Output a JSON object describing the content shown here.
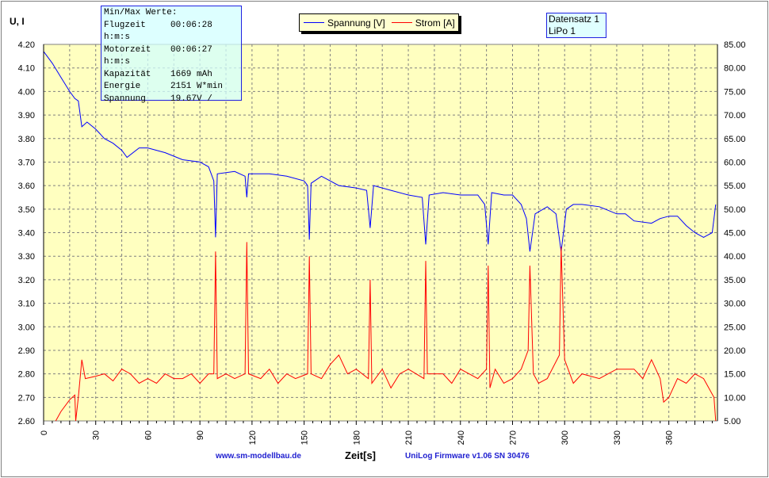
{
  "chart_data": {
    "type": "line",
    "ylabel": "U, I",
    "xlabel": "Zeit[s]",
    "xlim": [
      0,
      388
    ],
    "xticks": [
      0,
      30,
      60,
      90,
      120,
      150,
      180,
      210,
      240,
      270,
      300,
      330,
      360
    ],
    "ylim_left": [
      2.6,
      4.2
    ],
    "ylim_right": [
      5,
      85
    ],
    "grid": true,
    "legend_placement": "top-center",
    "background_color": "#ffffc0",
    "series": [
      {
        "name": "Spannung [V]",
        "axis": "left",
        "color": "#0000ff",
        "x": [
          0,
          5,
          10,
          15,
          18,
          20,
          22,
          25,
          30,
          35,
          40,
          45,
          48,
          55,
          60,
          70,
          80,
          90,
          95,
          98,
          99,
          100,
          110,
          116,
          117,
          118,
          130,
          140,
          150,
          152,
          153,
          154,
          160,
          170,
          180,
          186,
          188,
          190,
          200,
          210,
          218,
          220,
          222,
          230,
          240,
          250,
          254,
          256,
          258,
          265,
          270,
          275,
          278,
          280,
          283,
          290,
          295,
          298,
          301,
          305,
          310,
          320,
          330,
          335,
          340,
          350,
          355,
          360,
          365,
          370,
          375,
          380,
          385,
          387
        ],
        "y": [
          4.17,
          4.12,
          4.06,
          4.0,
          3.97,
          3.96,
          3.85,
          3.87,
          3.84,
          3.8,
          3.78,
          3.75,
          3.72,
          3.76,
          3.76,
          3.74,
          3.71,
          3.7,
          3.68,
          3.62,
          3.38,
          3.65,
          3.66,
          3.64,
          3.55,
          3.65,
          3.65,
          3.64,
          3.62,
          3.6,
          3.37,
          3.61,
          3.64,
          3.6,
          3.59,
          3.58,
          3.42,
          3.6,
          3.58,
          3.56,
          3.55,
          3.35,
          3.56,
          3.57,
          3.56,
          3.56,
          3.52,
          3.35,
          3.57,
          3.56,
          3.56,
          3.52,
          3.46,
          3.32,
          3.48,
          3.51,
          3.48,
          3.32,
          3.5,
          3.52,
          3.52,
          3.51,
          3.48,
          3.48,
          3.45,
          3.44,
          3.46,
          3.47,
          3.47,
          3.43,
          3.4,
          3.38,
          3.4,
          3.52
        ]
      },
      {
        "name": "Strom [A]",
        "axis": "right",
        "color": "#ff0000",
        "x": [
          7,
          10,
          15,
          18,
          18.5,
          20,
          22,
          24,
          30,
          35,
          40,
          45,
          50,
          55,
          60,
          65,
          70,
          75,
          80,
          85,
          90,
          95,
          98,
          99,
          100,
          105,
          110,
          116,
          117,
          118,
          125,
          130,
          135,
          140,
          145,
          152,
          153,
          154,
          160,
          165,
          170,
          175,
          180,
          187,
          188,
          189,
          195,
          200,
          205,
          210,
          219,
          220,
          221,
          230,
          235,
          240,
          245,
          250,
          255,
          256,
          257,
          260,
          265,
          270,
          275,
          279,
          280,
          282,
          285,
          290,
          297,
          298,
          300,
          305,
          310,
          320,
          330,
          340,
          345,
          350,
          355,
          357,
          360,
          365,
          370,
          375,
          380,
          386,
          387
        ],
        "y": [
          5,
          7,
          9.5,
          10.5,
          5,
          10,
          18,
          14,
          14.5,
          15,
          13.5,
          16,
          15,
          13,
          14,
          13,
          15,
          14,
          14,
          15,
          13,
          15,
          15,
          41,
          14,
          15,
          14,
          15,
          43,
          15,
          14,
          16,
          13,
          15,
          14,
          15,
          40,
          15,
          14,
          17,
          19,
          15,
          16,
          14,
          35,
          13,
          16,
          12,
          15,
          16,
          14,
          39,
          15,
          15,
          13,
          16,
          15,
          14,
          16,
          38,
          12,
          16,
          13,
          14,
          16,
          20,
          38,
          15,
          13,
          14,
          19,
          42,
          18,
          13,
          15,
          14,
          16,
          16,
          14,
          18,
          14,
          9,
          10,
          14,
          13,
          15,
          14,
          10,
          5
        ]
      }
    ]
  },
  "info_box": {
    "title": "Min/Max Werte:",
    "rows": [
      {
        "k": "Flugzeit",
        "v": "00:06:28"
      },
      {
        "k": "h:m:s",
        "v": ""
      },
      {
        "k": "Motorzeit",
        "v": "00:06:27"
      },
      {
        "k": "h:m:s",
        "v": ""
      },
      {
        "k": "Kapazität",
        "v": "1669 mAh"
      },
      {
        "k": "Energie",
        "v": "2151 W*min"
      },
      {
        "k": "Spannung",
        "v": "19.67V /"
      }
    ]
  },
  "legend": {
    "items": [
      "Spannung [V]",
      "Strom [A]"
    ]
  },
  "dataset": {
    "line1": "Datensatz 1",
    "line2": "LiPo 1"
  },
  "footer": {
    "left": "www.sm-modellbau.de",
    "right": "UniLog Firmware v1.06 SN 30476"
  }
}
